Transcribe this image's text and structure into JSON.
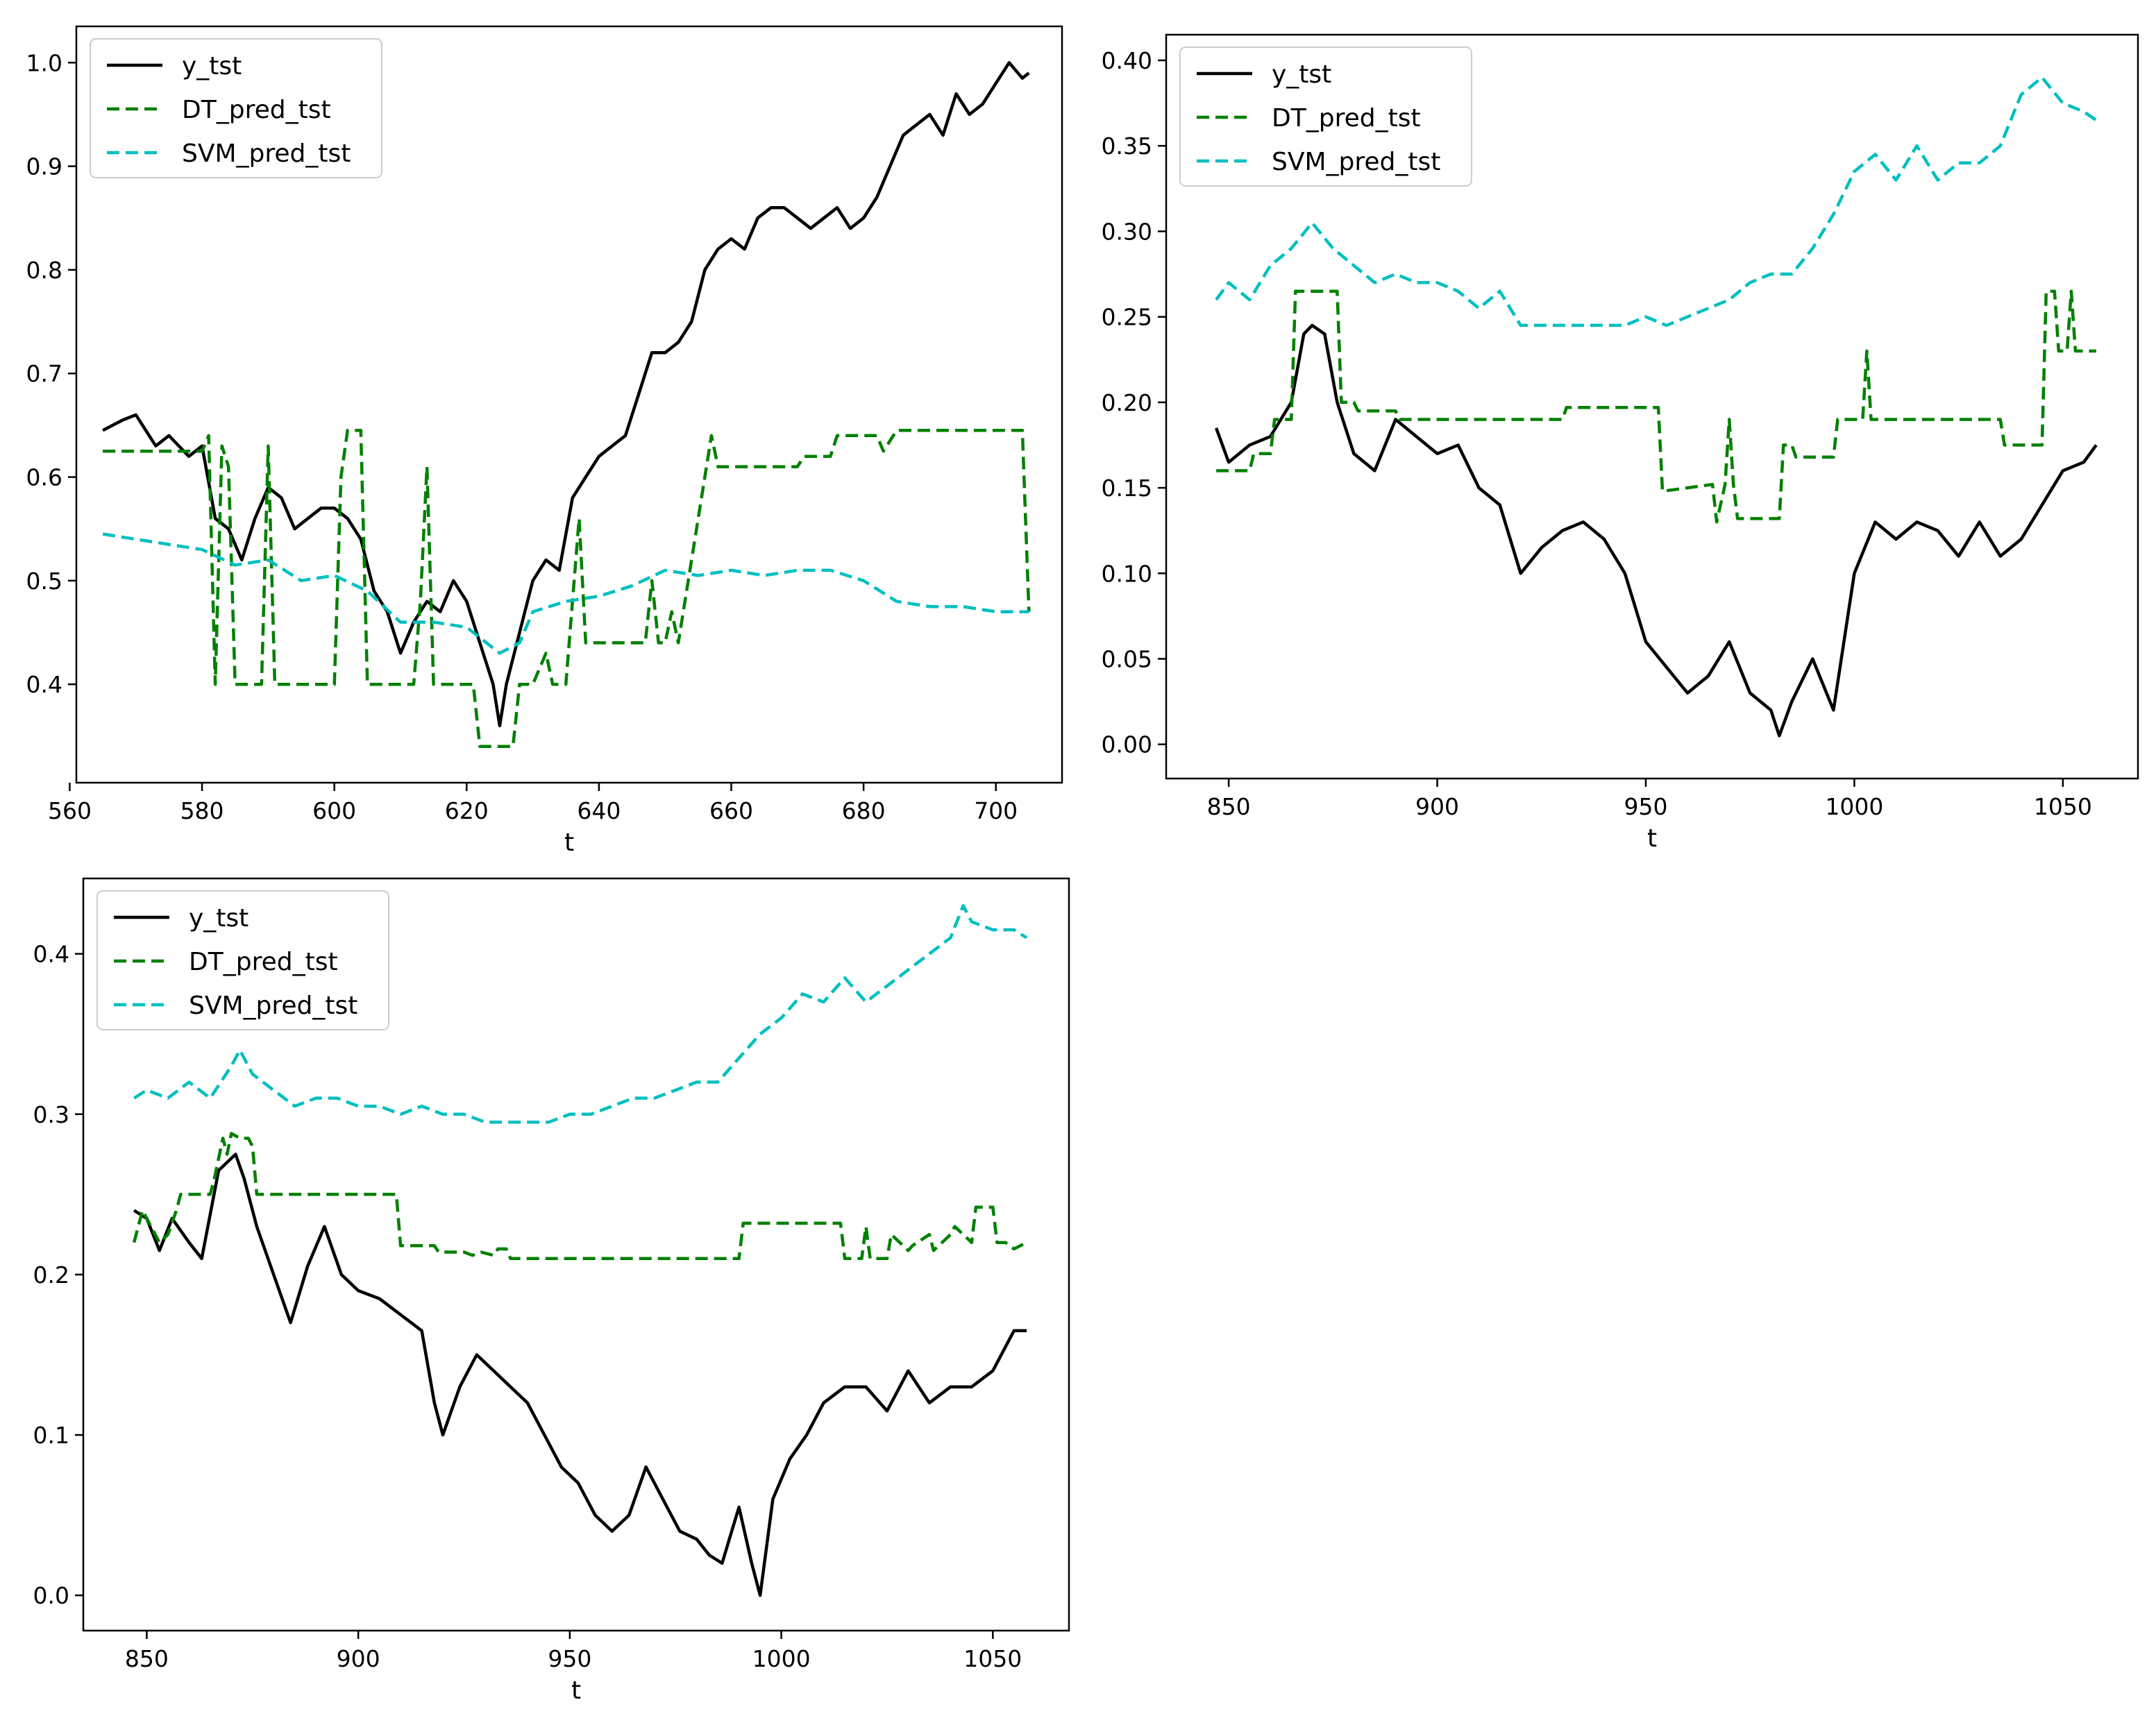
{
  "figure": {
    "layout": "2x2 grid, bottom-right empty",
    "colors": {
      "y_tst": "#000000",
      "DT_pred_tst": "#008000",
      "SVM_pred_tst": "#00BFBF"
    }
  },
  "chart_data": [
    {
      "type": "line",
      "title": "",
      "xlabel": "t",
      "ylabel": "",
      "xlim": [
        561,
        710
      ],
      "ylim": [
        0.305,
        1.035
      ],
      "xticks": [
        560,
        580,
        600,
        620,
        640,
        660,
        680,
        700
      ],
      "yticks": [
        0.4,
        0.5,
        0.6,
        0.7,
        0.8,
        0.9,
        1.0
      ],
      "ytick_labels": [
        "0.4",
        "0.5",
        "0.6",
        "0.7",
        "0.8",
        "0.9",
        "1.0"
      ],
      "legend_location": "upper-left",
      "series": [
        {
          "name": "y_tst",
          "style": "solid",
          "color": "#000000",
          "x": [
            565,
            568,
            570,
            573,
            575,
            578,
            580,
            582,
            584,
            586,
            588,
            590,
            592,
            594,
            596,
            598,
            600,
            602,
            604,
            606,
            608,
            610,
            612,
            614,
            616,
            618,
            620,
            622,
            624,
            625,
            626,
            628,
            630,
            632,
            634,
            636,
            638,
            640,
            642,
            644,
            646,
            648,
            650,
            652,
            654,
            656,
            658,
            660,
            662,
            664,
            666,
            668,
            670,
            672,
            674,
            676,
            678,
            680,
            682,
            684,
            686,
            688,
            690,
            692,
            694,
            696,
            698,
            700,
            702,
            704,
            705
          ],
          "values": [
            0.645,
            0.655,
            0.66,
            0.63,
            0.64,
            0.62,
            0.63,
            0.56,
            0.55,
            0.52,
            0.56,
            0.59,
            0.58,
            0.55,
            0.56,
            0.57,
            0.57,
            0.56,
            0.54,
            0.49,
            0.47,
            0.43,
            0.46,
            0.48,
            0.47,
            0.5,
            0.48,
            0.44,
            0.4,
            0.36,
            0.4,
            0.45,
            0.5,
            0.52,
            0.51,
            0.58,
            0.6,
            0.62,
            0.63,
            0.64,
            0.68,
            0.72,
            0.72,
            0.73,
            0.75,
            0.8,
            0.82,
            0.83,
            0.82,
            0.85,
            0.86,
            0.86,
            0.85,
            0.84,
            0.85,
            0.86,
            0.84,
            0.85,
            0.87,
            0.9,
            0.93,
            0.94,
            0.95,
            0.93,
            0.97,
            0.95,
            0.96,
            0.98,
            1.0,
            0.985,
            0.99
          ]
        },
        {
          "name": "DT_pred_tst",
          "style": "dashed",
          "color": "#008000",
          "x": [
            565,
            580,
            581,
            582,
            583,
            584,
            585,
            589,
            590,
            591,
            600,
            601,
            602,
            603,
            604,
            605,
            612,
            613,
            614,
            615,
            616,
            621,
            622,
            623,
            627,
            628,
            630,
            632,
            633,
            635,
            637,
            638,
            639,
            640,
            647,
            648,
            649,
            650,
            651,
            652,
            656,
            657,
            658,
            659,
            670,
            671,
            675,
            676,
            677,
            678,
            682,
            683,
            685,
            690,
            704,
            705
          ],
          "values": [
            0.625,
            0.625,
            0.64,
            0.4,
            0.63,
            0.61,
            0.4,
            0.4,
            0.63,
            0.4,
            0.4,
            0.6,
            0.645,
            0.645,
            0.645,
            0.4,
            0.4,
            0.48,
            0.61,
            0.4,
            0.4,
            0.4,
            0.34,
            0.34,
            0.34,
            0.4,
            0.4,
            0.43,
            0.4,
            0.4,
            0.56,
            0.44,
            0.44,
            0.44,
            0.44,
            0.5,
            0.44,
            0.44,
            0.47,
            0.44,
            0.6,
            0.64,
            0.61,
            0.61,
            0.61,
            0.62,
            0.62,
            0.64,
            0.64,
            0.64,
            0.64,
            0.625,
            0.645,
            0.645,
            0.645,
            0.47
          ]
        },
        {
          "name": "SVM_pred_tst",
          "style": "dashed",
          "color": "#00BFBF",
          "x": [
            565,
            570,
            575,
            580,
            585,
            590,
            595,
            600,
            605,
            610,
            615,
            620,
            625,
            628,
            630,
            635,
            640,
            645,
            650,
            655,
            660,
            665,
            670,
            675,
            680,
            685,
            690,
            695,
            700,
            705
          ],
          "values": [
            0.545,
            0.54,
            0.535,
            0.53,
            0.515,
            0.52,
            0.5,
            0.505,
            0.49,
            0.46,
            0.46,
            0.455,
            0.43,
            0.44,
            0.47,
            0.48,
            0.485,
            0.495,
            0.51,
            0.505,
            0.51,
            0.505,
            0.51,
            0.51,
            0.5,
            0.48,
            0.475,
            0.475,
            0.47,
            0.47
          ]
        }
      ]
    },
    {
      "type": "line",
      "title": "",
      "xlabel": "t",
      "ylabel": "",
      "xlim": [
        835,
        1068
      ],
      "ylim": [
        -0.02,
        0.415
      ],
      "xticks": [
        850,
        900,
        950,
        1000,
        1050
      ],
      "yticks": [
        0.0,
        0.05,
        0.1,
        0.15,
        0.2,
        0.25,
        0.3,
        0.35,
        0.4
      ],
      "ytick_labels": [
        "0.00",
        "0.05",
        "0.10",
        "0.15",
        "0.20",
        "0.25",
        "0.30",
        "0.35",
        "0.40"
      ],
      "legend_location": "upper-left",
      "series": [
        {
          "name": "y_tst",
          "style": "solid",
          "color": "#000000",
          "x": [
            847,
            850,
            855,
            860,
            865,
            868,
            870,
            873,
            876,
            880,
            885,
            890,
            895,
            900,
            905,
            910,
            915,
            920,
            925,
            930,
            935,
            940,
            945,
            950,
            955,
            960,
            965,
            970,
            975,
            980,
            982,
            985,
            990,
            995,
            1000,
            1005,
            1010,
            1015,
            1020,
            1025,
            1030,
            1035,
            1040,
            1045,
            1050,
            1055,
            1058
          ],
          "values": [
            0.185,
            0.165,
            0.175,
            0.18,
            0.2,
            0.24,
            0.245,
            0.24,
            0.2,
            0.17,
            0.16,
            0.19,
            0.18,
            0.17,
            0.175,
            0.15,
            0.14,
            0.1,
            0.115,
            0.125,
            0.13,
            0.12,
            0.1,
            0.06,
            0.045,
            0.03,
            0.04,
            0.06,
            0.03,
            0.02,
            0.005,
            0.025,
            0.05,
            0.02,
            0.1,
            0.13,
            0.12,
            0.13,
            0.125,
            0.11,
            0.13,
            0.11,
            0.12,
            0.14,
            0.16,
            0.165,
            0.175
          ]
        },
        {
          "name": "DT_pred_tst",
          "style": "dashed",
          "color": "#008000",
          "x": [
            847,
            855,
            856,
            860,
            861,
            865,
            866,
            876,
            877,
            880,
            881,
            890,
            891,
            930,
            931,
            953,
            954,
            966,
            967,
            969,
            970,
            971,
            972,
            975,
            976,
            982,
            983,
            985,
            986,
            995,
            996,
            1002,
            1003,
            1004,
            1005,
            1035,
            1036,
            1045,
            1046,
            1048,
            1049,
            1051,
            1052,
            1053,
            1054,
            1058
          ],
          "values": [
            0.16,
            0.16,
            0.17,
            0.17,
            0.19,
            0.19,
            0.265,
            0.265,
            0.2,
            0.2,
            0.195,
            0.195,
            0.19,
            0.19,
            0.197,
            0.197,
            0.148,
            0.152,
            0.13,
            0.152,
            0.19,
            0.152,
            0.132,
            0.132,
            0.132,
            0.132,
            0.175,
            0.175,
            0.168,
            0.168,
            0.19,
            0.19,
            0.23,
            0.19,
            0.19,
            0.19,
            0.175,
            0.175,
            0.265,
            0.265,
            0.23,
            0.23,
            0.265,
            0.23,
            0.23,
            0.23
          ]
        },
        {
          "name": "SVM_pred_tst",
          "style": "dashed",
          "color": "#00BFBF",
          "x": [
            847,
            850,
            855,
            860,
            865,
            870,
            875,
            880,
            885,
            890,
            895,
            900,
            905,
            910,
            915,
            920,
            925,
            930,
            935,
            940,
            945,
            950,
            955,
            960,
            965,
            970,
            975,
            980,
            985,
            990,
            995,
            1000,
            1005,
            1010,
            1015,
            1020,
            1025,
            1030,
            1035,
            1040,
            1045,
            1050,
            1055,
            1058
          ],
          "values": [
            0.26,
            0.27,
            0.26,
            0.28,
            0.29,
            0.305,
            0.29,
            0.28,
            0.27,
            0.275,
            0.27,
            0.27,
            0.265,
            0.255,
            0.265,
            0.245,
            0.245,
            0.245,
            0.245,
            0.245,
            0.245,
            0.25,
            0.245,
            0.25,
            0.255,
            0.26,
            0.27,
            0.275,
            0.275,
            0.29,
            0.31,
            0.335,
            0.345,
            0.33,
            0.35,
            0.33,
            0.34,
            0.34,
            0.35,
            0.38,
            0.39,
            0.375,
            0.37,
            0.365
          ]
        }
      ]
    },
    {
      "type": "line",
      "title": "",
      "xlabel": "t",
      "ylabel": "",
      "xlim": [
        835,
        1068
      ],
      "ylim": [
        -0.022,
        0.447
      ],
      "xticks": [
        850,
        900,
        950,
        1000,
        1050
      ],
      "yticks": [
        0.0,
        0.1,
        0.2,
        0.3,
        0.4
      ],
      "ytick_labels": [
        "0.0",
        "0.1",
        "0.2",
        "0.3",
        "0.4"
      ],
      "legend_location": "upper-left",
      "series": [
        {
          "name": "y_tst",
          "style": "solid",
          "color": "#000000",
          "x": [
            847,
            850,
            853,
            856,
            860,
            863,
            867,
            869,
            871,
            873,
            876,
            880,
            884,
            888,
            892,
            896,
            900,
            905,
            910,
            915,
            918,
            920,
            924,
            928,
            932,
            936,
            940,
            944,
            948,
            952,
            956,
            960,
            964,
            968,
            972,
            976,
            980,
            983,
            986,
            990,
            993,
            995,
            998,
            1002,
            1006,
            1010,
            1015,
            1020,
            1025,
            1030,
            1035,
            1040,
            1045,
            1050,
            1055,
            1058
          ],
          "values": [
            0.24,
            0.235,
            0.215,
            0.235,
            0.22,
            0.21,
            0.265,
            0.27,
            0.275,
            0.26,
            0.23,
            0.2,
            0.17,
            0.205,
            0.23,
            0.2,
            0.19,
            0.185,
            0.175,
            0.165,
            0.12,
            0.1,
            0.13,
            0.15,
            0.14,
            0.13,
            0.12,
            0.1,
            0.08,
            0.07,
            0.05,
            0.04,
            0.05,
            0.08,
            0.06,
            0.04,
            0.035,
            0.025,
            0.02,
            0.055,
            0.02,
            0.0,
            0.06,
            0.085,
            0.1,
            0.12,
            0.13,
            0.13,
            0.115,
            0.14,
            0.12,
            0.13,
            0.13,
            0.14,
            0.165,
            0.165
          ]
        },
        {
          "name": "DT_pred_tst",
          "style": "dashed",
          "color": "#008000",
          "x": [
            847,
            849,
            851,
            853,
            855,
            857,
            858,
            865,
            866,
            868,
            869,
            870,
            872,
            874,
            875,
            876,
            909,
            910,
            918,
            919,
            925,
            927,
            929,
            932,
            933,
            935,
            936,
            990,
            991,
            1014,
            1015,
            1019,
            1020,
            1021,
            1022,
            1025,
            1026,
            1030,
            1031,
            1035,
            1036,
            1040,
            1041,
            1045,
            1046,
            1050,
            1051,
            1053,
            1055,
            1058
          ],
          "values": [
            0.22,
            0.24,
            0.23,
            0.22,
            0.225,
            0.24,
            0.25,
            0.25,
            0.26,
            0.285,
            0.275,
            0.288,
            0.285,
            0.285,
            0.28,
            0.25,
            0.25,
            0.218,
            0.218,
            0.214,
            0.214,
            0.212,
            0.214,
            0.212,
            0.216,
            0.216,
            0.21,
            0.21,
            0.232,
            0.232,
            0.21,
            0.21,
            0.23,
            0.21,
            0.21,
            0.21,
            0.225,
            0.215,
            0.218,
            0.225,
            0.215,
            0.225,
            0.23,
            0.22,
            0.242,
            0.242,
            0.22,
            0.22,
            0.216,
            0.22
          ]
        },
        {
          "name": "SVM_pred_tst",
          "style": "dashed",
          "color": "#00BFBF",
          "x": [
            847,
            850,
            855,
            860,
            865,
            870,
            872,
            875,
            880,
            885,
            890,
            895,
            900,
            905,
            910,
            915,
            920,
            925,
            930,
            935,
            940,
            945,
            950,
            955,
            960,
            965,
            970,
            975,
            980,
            985,
            990,
            995,
            1000,
            1005,
            1010,
            1015,
            1020,
            1025,
            1030,
            1035,
            1040,
            1043,
            1045,
            1050,
            1055,
            1058
          ],
          "values": [
            0.31,
            0.315,
            0.31,
            0.32,
            0.31,
            0.33,
            0.34,
            0.325,
            0.315,
            0.305,
            0.31,
            0.31,
            0.305,
            0.305,
            0.3,
            0.305,
            0.3,
            0.3,
            0.295,
            0.295,
            0.295,
            0.295,
            0.3,
            0.3,
            0.305,
            0.31,
            0.31,
            0.315,
            0.32,
            0.32,
            0.335,
            0.35,
            0.36,
            0.375,
            0.37,
            0.385,
            0.37,
            0.38,
            0.39,
            0.4,
            0.41,
            0.43,
            0.42,
            0.415,
            0.415,
            0.41
          ]
        }
      ]
    }
  ]
}
